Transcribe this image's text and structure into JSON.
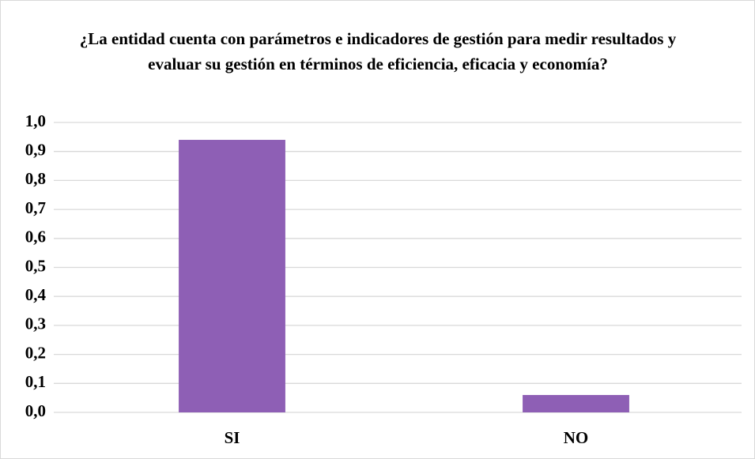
{
  "chart_data": {
    "type": "bar",
    "title": "¿La entidad cuenta con parámetros e indicadores de gestión para medir resultados y evaluar su gestión en términos de eficiencia, eficacia y economía?",
    "categories": [
      "SI",
      "NO"
    ],
    "values": [
      0.94,
      0.06
    ],
    "color": "#8e5fb5",
    "ylim": [
      0,
      1
    ],
    "yticks": [
      {
        "value": 0,
        "label": "0,0"
      },
      {
        "value": 0.1,
        "label": "0,1"
      },
      {
        "value": 0.2,
        "label": "0,2"
      },
      {
        "value": 0.3,
        "label": "0,3"
      },
      {
        "value": 0.4,
        "label": "0,4"
      },
      {
        "value": 0.5,
        "label": "0,5"
      },
      {
        "value": 0.6,
        "label": "0,6"
      },
      {
        "value": 0.7,
        "label": "0,7"
      },
      {
        "value": 0.8,
        "label": "0,8"
      },
      {
        "value": 0.9,
        "label": "0,9"
      },
      {
        "value": 1,
        "label": "1,0"
      }
    ],
    "grid": true
  }
}
